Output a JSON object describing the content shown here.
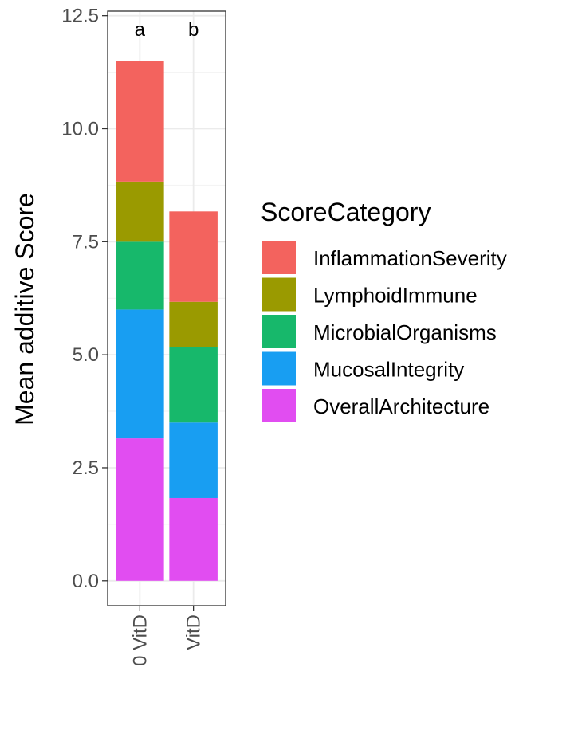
{
  "chart_data": {
    "type": "bar",
    "stacked": true,
    "categories": [
      "0 VitD",
      "VitD"
    ],
    "series": [
      {
        "name": "OverallArchitecture",
        "color": "#E14DF1",
        "values": [
          3.15,
          1.83
        ]
      },
      {
        "name": "MucosalIntegrity",
        "color": "#189EF2",
        "values": [
          2.85,
          1.67
        ]
      },
      {
        "name": "MicrobialOrganisms",
        "color": "#17B86B",
        "values": [
          1.5,
          1.67
        ]
      },
      {
        "name": "LymphoidImmune",
        "color": "#9A9A00",
        "values": [
          1.33,
          1.0
        ]
      },
      {
        "name": "InflammationSeverity",
        "color": "#F3635E",
        "values": [
          2.67,
          2.0
        ]
      }
    ],
    "annotations": [
      "a",
      "b"
    ],
    "ylabel": "Mean additive Score",
    "xlabel": "",
    "ylim": [
      -0.55,
      12.6
    ],
    "yticks": [
      0.0,
      2.5,
      5.0,
      7.5,
      10.0,
      12.5
    ],
    "ytick_labels": [
      "0.0",
      "2.5",
      "5.0",
      "7.5",
      "10.0",
      "12.5"
    ],
    "grid": true,
    "legend": {
      "title": "ScoreCategory",
      "placement": "right",
      "items": [
        "InflammationSeverity",
        "LymphoidImmune",
        "MicrobialOrganisms",
        "MucosalIntegrity",
        "OverallArchitecture"
      ]
    }
  }
}
